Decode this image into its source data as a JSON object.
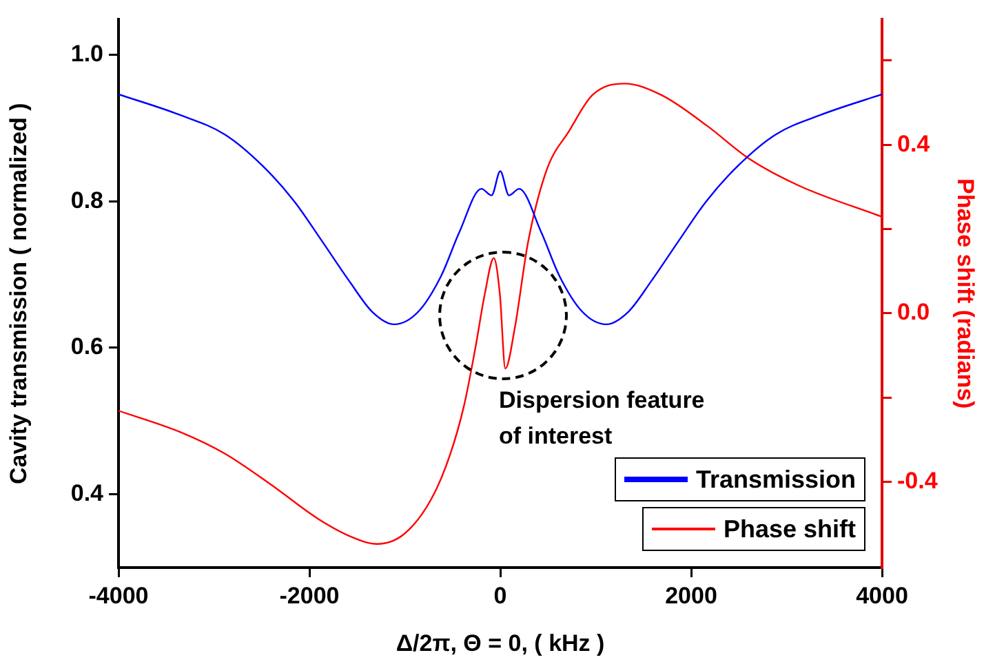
{
  "chart_data": {
    "type": "line",
    "xlabel": "Δ/2π, Θ = 0, ( kHz )",
    "ylabel": "Cavity transmission ( normalized )",
    "y2label": "Phase shift (radians)",
    "xlim": [
      -4000,
      4000
    ],
    "xticks": [
      -4000,
      -2000,
      0,
      2000,
      4000
    ],
    "ylim": [
      0.3,
      1.048
    ],
    "yticks": [
      0.4,
      0.6,
      0.8,
      {
        "value": 1,
        "label": "1.0"
      }
    ],
    "y2lim": [
      -0.603,
      0.697
    ],
    "y2ticks": [
      {
        "value": -0.4,
        "label": "-0.4"
      },
      {
        "value": -0.2,
        "label": null
      },
      {
        "value": 0,
        "label": "0.0"
      },
      {
        "value": 0.2,
        "label": null
      },
      {
        "value": 0.4,
        "label": "0.4"
      },
      {
        "value": 0.6,
        "label": null
      }
    ],
    "grid": false,
    "legend": "bottom right",
    "marker": "none",
    "line_style": "solid",
    "annotations": [
      "Dispersion feature of interest"
    ],
    "series": [
      {
        "name": "Transmission",
        "color": "#0000ff",
        "x": [
          -4000,
          -3360,
          -2884,
          -2495,
          -2159,
          -1870,
          -1582,
          -1341,
          -1110,
          -861,
          -620,
          -428,
          -198,
          -91,
          0,
          91,
          198,
          428,
          620,
          861,
          1110,
          1341,
          1582,
          1870,
          2159,
          2495,
          2884,
          3360,
          4000
        ],
        "values": [
          0.946,
          0.918,
          0.891,
          0.849,
          0.8,
          0.746,
          0.691,
          0.649,
          0.632,
          0.649,
          0.698,
          0.758,
          0.817,
          0.808,
          0.841,
          0.808,
          0.817,
          0.758,
          0.698,
          0.649,
          0.632,
          0.649,
          0.691,
          0.746,
          0.8,
          0.849,
          0.891,
          0.918,
          0.946
        ]
      },
      {
        "name": "Phase shift",
        "color": "#ff0000",
        "axis": "y2",
        "x": [
          -4000,
          -3360,
          -2884,
          -2398,
          -1918,
          -1582,
          -1293,
          -1005,
          -717,
          -523,
          -379,
          -260,
          -163,
          -68,
          -4,
          53,
          149,
          293,
          486,
          725,
          966,
          1302,
          1687,
          2167,
          2600,
          3129,
          4000
        ],
        "values": [
          -0.231,
          -0.281,
          -0.333,
          -0.407,
          -0.486,
          -0.528,
          -0.547,
          -0.523,
          -0.438,
          -0.333,
          -0.218,
          -0.081,
          0.045,
          0.131,
          0.045,
          -0.131,
          -0.039,
          0.171,
          0.34,
          0.434,
          0.518,
          0.545,
          0.518,
          0.445,
          0.368,
          0.303,
          0.229
        ]
      }
    ]
  }
}
